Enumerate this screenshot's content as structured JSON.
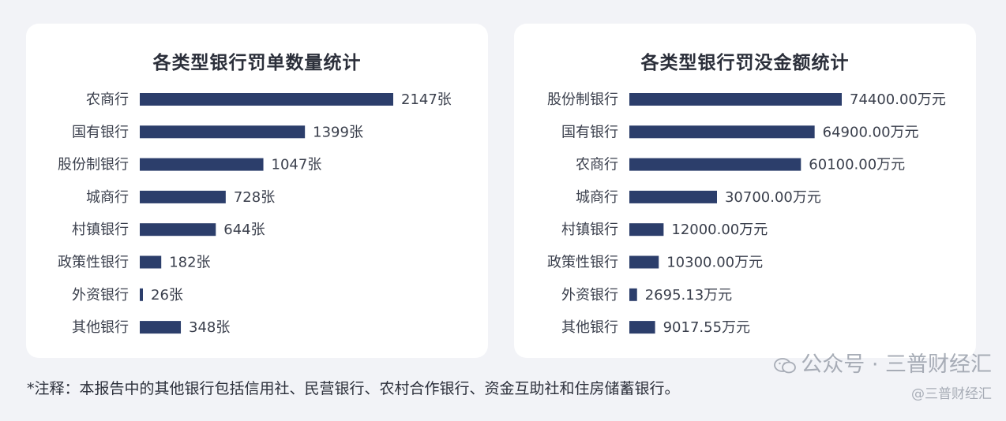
{
  "chart_data": [
    {
      "type": "bar",
      "orientation": "horizontal",
      "title": "各类型银行罚单数量统计",
      "categories": [
        "农商行",
        "国有银行",
        "股份制银行",
        "城商行",
        "村镇银行",
        "政策性银行",
        "外资银行",
        "其他银行"
      ],
      "values": [
        2147,
        1399,
        1047,
        728,
        644,
        182,
        26,
        348
      ],
      "data_labels": [
        "2147张",
        "1399张",
        "1047张",
        "728张",
        "644张",
        "182张",
        "26张",
        "348张"
      ],
      "unit": "张",
      "xlim": [
        0,
        2147
      ],
      "bar_color": "#2c3e6b",
      "grid": false
    },
    {
      "type": "bar",
      "orientation": "horizontal",
      "title": "各类型银行罚没金额统计",
      "categories": [
        "股份制银行",
        "国有银行",
        "农商行",
        "城商行",
        "村镇银行",
        "政策性银行",
        "外资银行",
        "其他银行"
      ],
      "values": [
        74400.0,
        64900.0,
        60100.0,
        30700.0,
        12000.0,
        10300.0,
        2695.13,
        9017.55
      ],
      "data_labels": [
        "74400.00万元",
        "64900.00万元",
        "60100.00万元",
        "30700.00万元",
        "12000.00万元",
        "10300.00万元",
        "2695.13万元",
        "9017.55万元"
      ],
      "unit": "万元",
      "xlim": [
        0,
        74400
      ],
      "bar_color": "#2c3e6b",
      "grid": false
    }
  ],
  "footnote": "*注释：本报告中的其他银行包括信用社、民营银行、农村合作银行、资金互助社和住房储蓄银行。",
  "watermark": {
    "line1": "公众号 · 三普财经汇",
    "line2": "@三普财经汇",
    "icon": "wechat-icon"
  }
}
